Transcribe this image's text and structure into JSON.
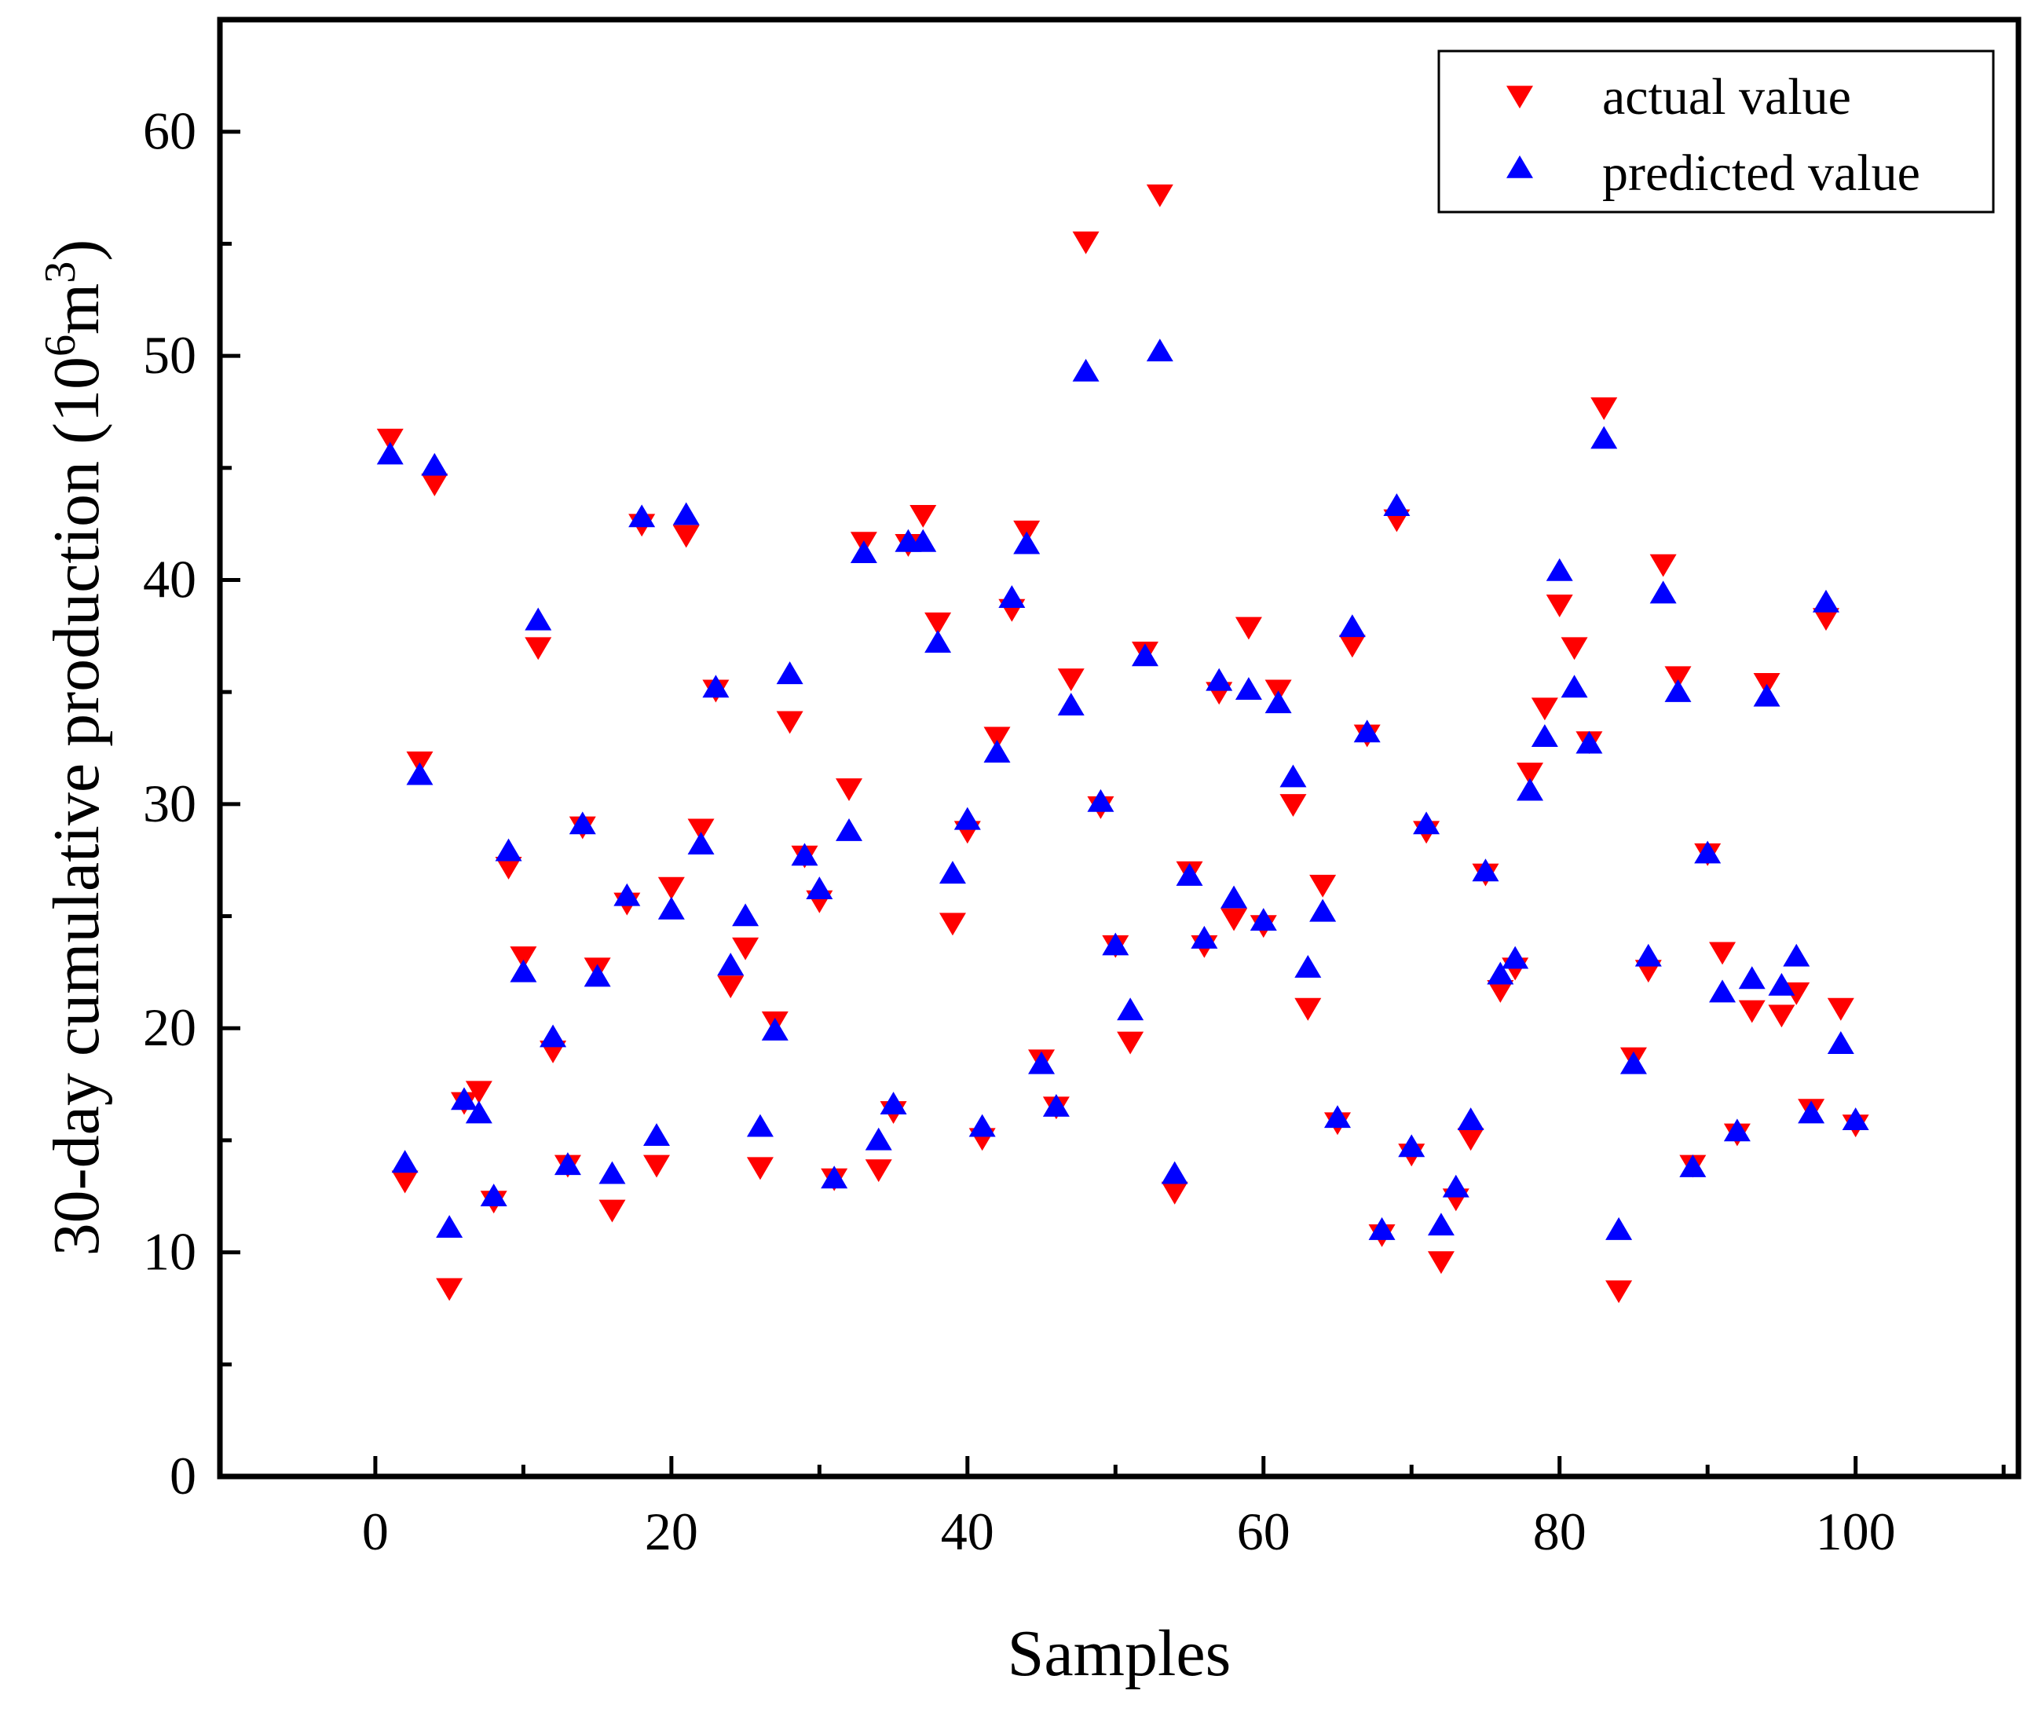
{
  "chart_data": {
    "type": "scatter",
    "title": "",
    "xlabel": "Samples",
    "ylabel_main": "30-day cumulative production (10",
    "ylabel_sup": "6",
    "ylabel_unit": "m",
    "ylabel_sup2": "3",
    "ylabel_end": ")",
    "xlim": [
      -10.5,
      111
    ],
    "ylim": [
      0,
      65
    ],
    "xticks": [
      0,
      20,
      40,
      60,
      80,
      100
    ],
    "xtick_labels": [
      "0",
      "20",
      "40",
      "60",
      "80",
      "100"
    ],
    "yticks": [
      0,
      10,
      20,
      30,
      40,
      50,
      60
    ],
    "ytick_labels": [
      "0",
      "10",
      "20",
      "30",
      "40",
      "50",
      "60"
    ],
    "legend_position": "top-right",
    "series": [
      {
        "name": "actual value",
        "marker": "triangle-down",
        "color": "#ff0000",
        "x": [
          1,
          2,
          3,
          4,
          5,
          6,
          7,
          8,
          9,
          10,
          11,
          12,
          13,
          14,
          15,
          16,
          17,
          18,
          19,
          20,
          21,
          22,
          23,
          24,
          25,
          26,
          27,
          28,
          29,
          30,
          31,
          32,
          33,
          34,
          35,
          36,
          37,
          38,
          39,
          40,
          41,
          42,
          43,
          44,
          45,
          46,
          47,
          48,
          49,
          50,
          51,
          52,
          53,
          54,
          55,
          56,
          57,
          58,
          59,
          60,
          61,
          62,
          63,
          64,
          65,
          66,
          67,
          68,
          69,
          70,
          71,
          72,
          73,
          74,
          75,
          76,
          77,
          78,
          79,
          80,
          81,
          82,
          83,
          84,
          85,
          86,
          87,
          88,
          89,
          90,
          91,
          92,
          93,
          94,
          95,
          96,
          97,
          98,
          99,
          100
        ],
        "y": [
          46.3,
          13.2,
          31.9,
          44.3,
          8.4,
          16.7,
          17.2,
          12.3,
          27.2,
          23.2,
          37.0,
          19.0,
          13.9,
          29.0,
          22.7,
          11.9,
          25.6,
          42.5,
          13.9,
          26.3,
          42.0,
          28.9,
          35.1,
          21.9,
          23.6,
          13.8,
          20.3,
          33.7,
          27.7,
          25.7,
          13.3,
          30.7,
          41.7,
          13.7,
          16.3,
          41.6,
          42.9,
          38.1,
          24.7,
          28.8,
          15.1,
          33.0,
          38.7,
          42.2,
          18.6,
          16.5,
          35.6,
          55.1,
          29.9,
          23.7,
          19.4,
          36.8,
          57.2,
          12.7,
          27.0,
          23.7,
          35.0,
          24.9,
          37.9,
          24.6,
          35.1,
          30.0,
          20.9,
          26.4,
          15.8,
          37.1,
          33.1,
          10.8,
          42.7,
          14.4,
          28.8,
          9.6,
          12.4,
          15.1,
          26.9,
          21.7,
          22.7,
          31.4,
          34.3,
          38.9,
          37.0,
          32.8,
          47.7,
          8.3,
          18.7,
          22.6,
          40.7,
          35.7,
          13.9,
          27.8,
          23.4,
          15.3,
          20.8,
          35.4,
          20.6,
          21.6,
          16.4,
          38.3,
          20.9,
          15.7
        ]
      },
      {
        "name": "predicted value",
        "marker": "triangle-up",
        "color": "#0000ff",
        "x": [
          1,
          2,
          3,
          4,
          5,
          6,
          7,
          8,
          9,
          10,
          11,
          12,
          13,
          14,
          15,
          16,
          17,
          18,
          19,
          20,
          21,
          22,
          23,
          24,
          25,
          26,
          27,
          28,
          29,
          30,
          31,
          32,
          33,
          34,
          35,
          36,
          37,
          38,
          39,
          40,
          41,
          42,
          43,
          44,
          45,
          46,
          47,
          48,
          49,
          50,
          51,
          52,
          53,
          54,
          55,
          56,
          57,
          58,
          59,
          60,
          61,
          62,
          63,
          64,
          65,
          66,
          67,
          68,
          69,
          70,
          71,
          72,
          73,
          74,
          75,
          76,
          77,
          78,
          79,
          80,
          81,
          82,
          83,
          84,
          85,
          86,
          87,
          88,
          89,
          90,
          91,
          92,
          93,
          94,
          95,
          96,
          97,
          98,
          99,
          100
        ],
        "y": [
          45.6,
          14.0,
          31.3,
          45.1,
          11.1,
          16.8,
          16.2,
          12.5,
          27.9,
          22.5,
          38.2,
          19.6,
          13.9,
          29.1,
          22.3,
          13.5,
          25.9,
          42.8,
          15.2,
          25.3,
          42.9,
          28.2,
          35.2,
          22.8,
          25.0,
          15.6,
          19.9,
          35.8,
          27.7,
          26.2,
          13.3,
          28.8,
          41.2,
          15.0,
          16.6,
          41.7,
          41.7,
          37.2,
          26.9,
          29.3,
          15.6,
          32.3,
          39.2,
          41.6,
          18.4,
          16.5,
          34.4,
          49.3,
          30.1,
          23.7,
          20.8,
          36.6,
          50.2,
          13.5,
          26.8,
          24.0,
          35.5,
          25.8,
          35.1,
          24.8,
          34.5,
          31.2,
          22.7,
          25.2,
          16.0,
          37.9,
          33.2,
          11.0,
          43.3,
          14.7,
          29.1,
          11.2,
          12.9,
          15.9,
          27.0,
          22.4,
          23.1,
          30.6,
          33.0,
          40.4,
          35.2,
          32.7,
          46.3,
          11.0,
          18.4,
          23.2,
          39.4,
          35.0,
          13.8,
          27.8,
          21.6,
          15.4,
          22.2,
          34.8,
          21.9,
          23.2,
          16.2,
          39.0,
          19.3,
          15.9
        ]
      }
    ]
  }
}
